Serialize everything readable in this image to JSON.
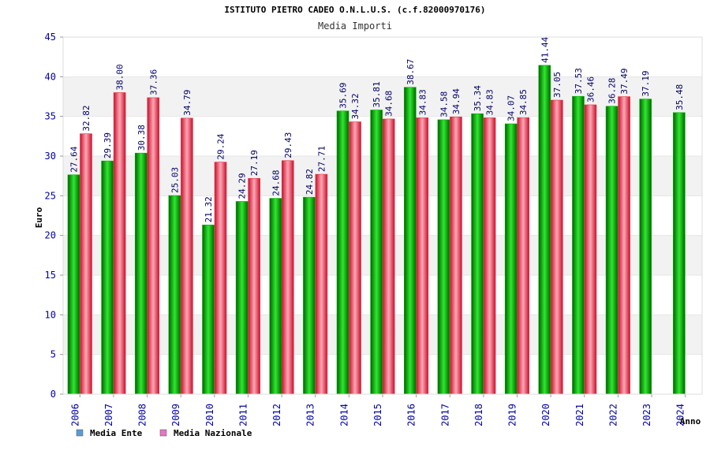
{
  "colors": {
    "ente": "#00b400",
    "nazionale": "#e8323c",
    "axis_text": "#0000aa",
    "value_text": "#000066",
    "band": "#f2f2f2",
    "legend_ente": "#5b9bd5",
    "legend_nazionale": "#e377c2"
  },
  "chart_data": {
    "type": "bar",
    "title": "ISTITUTO PIETRO CADEO O.N.L.U.S. (c.f.82000970176)",
    "subtitle": "Media Importi",
    "xlabel": "Anno",
    "ylabel": "Euro",
    "ylim": [
      0,
      45
    ],
    "yticks": [
      "0",
      "5",
      "10",
      "15",
      "20",
      "25",
      "30",
      "35",
      "40",
      "45"
    ],
    "categories": [
      "2006",
      "2007",
      "2008",
      "2009",
      "2010",
      "2011",
      "2012",
      "2013",
      "2014",
      "2015",
      "2016",
      "2017",
      "2018",
      "2019",
      "2020",
      "2021",
      "2022",
      "2023",
      "2024"
    ],
    "series": [
      {
        "name": "Media Ente",
        "values": [
          27.64,
          29.39,
          30.38,
          25.03,
          21.32,
          24.29,
          24.68,
          24.82,
          35.69,
          35.81,
          38.67,
          34.58,
          35.34,
          34.07,
          41.44,
          37.53,
          36.28,
          37.19,
          35.48
        ],
        "labels": [
          "27.64",
          "29.39",
          "30.38",
          "25.03",
          "21.32",
          "24.29",
          "24.68",
          "24.82",
          "35.69",
          "35.81",
          "38.67",
          "34.58",
          "35.34",
          "34.07",
          "41.44",
          "37.53",
          "36.28",
          "37.19",
          "35.48"
        ]
      },
      {
        "name": "Media Nazionale",
        "values": [
          32.82,
          38.0,
          37.36,
          34.79,
          29.24,
          27.19,
          29.43,
          27.71,
          34.32,
          34.68,
          34.83,
          34.94,
          34.83,
          34.85,
          37.05,
          36.46,
          37.49,
          null,
          null
        ],
        "labels": [
          "32.82",
          "38.00",
          "37.36",
          "34.79",
          "29.24",
          "27.19",
          "29.43",
          "27.71",
          "34.32",
          "34.68",
          "34.83",
          "34.94",
          "34.83",
          "34.85",
          "37.05",
          "36.46",
          "37.49",
          "",
          ""
        ]
      }
    ],
    "legend": [
      "Media Ente",
      "Media Nazionale"
    ],
    "legend_position": "bottom-left",
    "grid": "horizontal-bands"
  }
}
